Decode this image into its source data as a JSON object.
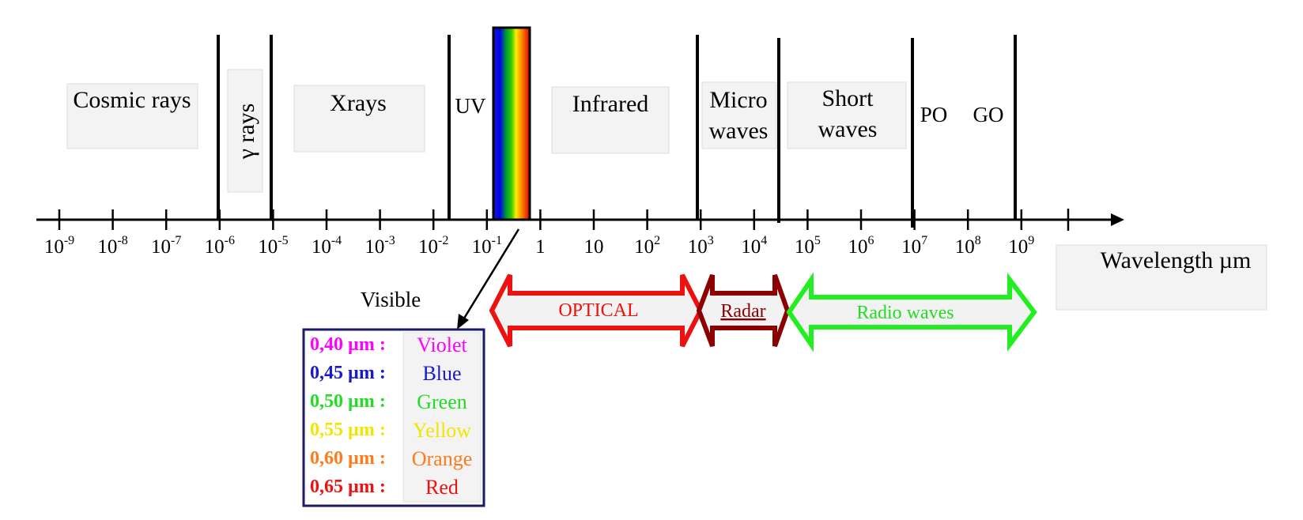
{
  "axis": {
    "ticks": [
      {
        "base": "10",
        "exp": "-9"
      },
      {
        "base": "10",
        "exp": "-8"
      },
      {
        "base": "10",
        "exp": "-7"
      },
      {
        "base": "10",
        "exp": "-6"
      },
      {
        "base": "10",
        "exp": "-5"
      },
      {
        "base": "10",
        "exp": "-4"
      },
      {
        "base": "10",
        "exp": "-3"
      },
      {
        "base": "10",
        "exp": "-2"
      },
      {
        "base": "10",
        "exp": "-1"
      },
      {
        "base": "1",
        "exp": ""
      },
      {
        "base": "10",
        "exp": ""
      },
      {
        "base": "10",
        "exp": "2"
      },
      {
        "base": "10",
        "exp": "3"
      },
      {
        "base": "10",
        "exp": "4"
      },
      {
        "base": "10",
        "exp": "5"
      },
      {
        "base": "10",
        "exp": "6"
      },
      {
        "base": "10",
        "exp": "7"
      },
      {
        "base": "10",
        "exp": "8"
      },
      {
        "base": "10",
        "exp": "9"
      }
    ],
    "label": "Wavelength µm"
  },
  "bands": {
    "cosmic": "Cosmic rays",
    "gamma": "γ rays",
    "xrays": "Xrays",
    "uv": "UV",
    "infrared": "Infrared",
    "micro_1": "Micro",
    "micro_2": "waves",
    "short_1": "Short",
    "short_2": "waves",
    "po": "PO",
    "go": "GO"
  },
  "ranges": {
    "optical": "OPTICAL",
    "radar": "Radar",
    "radio": "Radio waves"
  },
  "visible": {
    "title": "Visible",
    "rows": [
      {
        "wl": "0,40 µm :",
        "name": "Violet",
        "color": "#ff00ff"
      },
      {
        "wl": "0,45 µm :",
        "name": "Blue",
        "color": "#1a1acc"
      },
      {
        "wl": "0,50 µm :",
        "name": "Green",
        "color": "#22dd22"
      },
      {
        "wl": "0,55 µm :",
        "name": "Yellow",
        "color": "#f2e600"
      },
      {
        "wl": "0,60 µm :",
        "name": "Orange",
        "color": "#ff7a1a"
      },
      {
        "wl": "0,65 µm :",
        "name": "Red",
        "color": "#ee1111"
      }
    ]
  },
  "colors": {
    "optical_arrow": "#ee1111",
    "radar_arrow": "#8b0000",
    "radio_arrow": "#22ee22",
    "table_border": "#1a1a66"
  }
}
